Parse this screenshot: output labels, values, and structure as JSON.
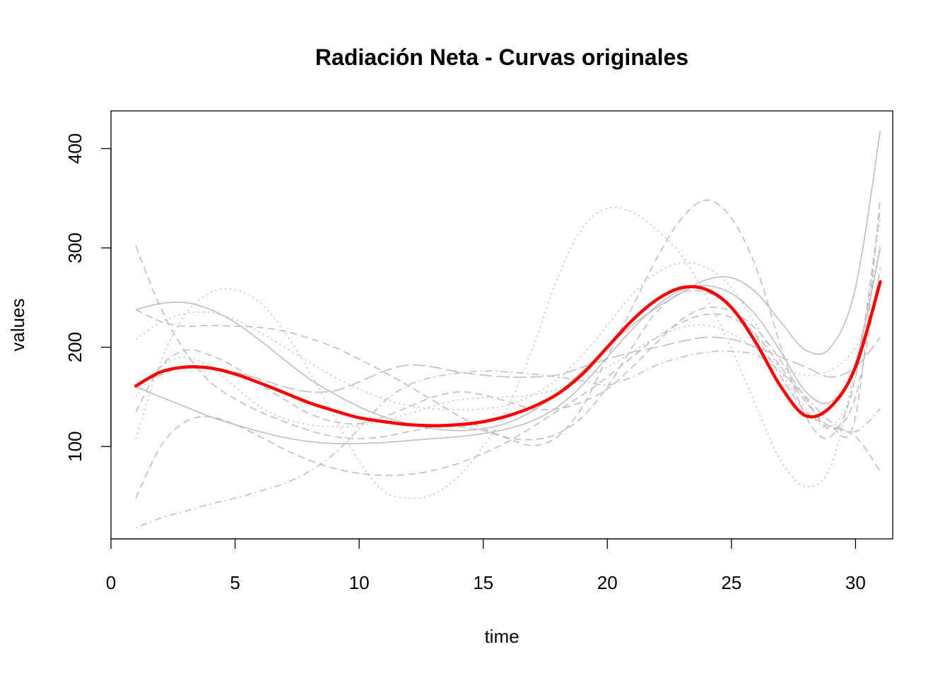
{
  "chart_data": {
    "type": "line",
    "title": "Radiación Neta - Curvas originales",
    "xlabel": "time",
    "ylabel": "values",
    "xlim": [
      0,
      31.5
    ],
    "ylim": [
      7,
      438
    ],
    "xticks": [
      0,
      5,
      10,
      15,
      20,
      25,
      30
    ],
    "yticks": [
      100,
      200,
      300,
      400
    ],
    "grid": false,
    "legend": "none",
    "colors": {
      "curves": "#bebebe",
      "mean": "#ff0000",
      "axis": "#000000"
    },
    "x": [
      1,
      2,
      3,
      4,
      5,
      6,
      7,
      8,
      9,
      10,
      11,
      12,
      13,
      14,
      15,
      16,
      17,
      18,
      19,
      20,
      21,
      22,
      23,
      24,
      25,
      26,
      27,
      28,
      29,
      30,
      31
    ],
    "series": [
      {
        "style": "solid",
        "values": [
          238,
          244,
          245,
          238,
          225,
          207,
          187,
          168,
          153,
          140,
          130,
          123,
          118,
          116,
          118,
          124,
          136,
          154,
          176,
          200,
          222,
          240,
          255,
          268,
          270,
          255,
          225,
          197,
          200,
          260,
          418
        ]
      },
      {
        "style": "solid",
        "values": [
          160,
          150,
          140,
          130,
          122,
          115,
          109,
          105,
          103,
          103,
          104,
          106,
          108,
          110,
          113,
          118,
          126,
          140,
          162,
          190,
          218,
          242,
          258,
          262,
          254,
          232,
          195,
          155,
          145,
          185,
          300
        ]
      },
      {
        "style": "dashed",
        "values": [
          302,
          240,
          195,
          165,
          148,
          135,
          125,
          116,
          110,
          108,
          110,
          115,
          119,
          120,
          116,
          108,
          101,
          110,
          140,
          190,
          240,
          290,
          330,
          348,
          330,
          280,
          200,
          130,
          110,
          170,
          340
        ]
      },
      {
        "style": "dashed",
        "values": [
          48,
          100,
          125,
          130,
          122,
          110,
          97,
          86,
          78,
          73,
          71,
          72,
          76,
          83,
          93,
          105,
          120,
          136,
          152,
          170,
          190,
          210,
          225,
          233,
          230,
          212,
          180,
          145,
          120,
          130,
          350
        ]
      },
      {
        "style": "dashed",
        "values": [
          135,
          180,
          197,
          192,
          180,
          163,
          147,
          133,
          125,
          123,
          130,
          140,
          150,
          155,
          152,
          145,
          138,
          138,
          145,
          158,
          180,
          205,
          228,
          240,
          236,
          218,
          186,
          148,
          118,
          150,
          280
        ]
      },
      {
        "style": "dashed",
        "values": [
          238,
          226,
          221,
          222,
          221,
          220,
          216,
          209,
          200,
          188,
          175,
          161,
          146,
          131,
          118,
          109,
          107,
          113,
          130,
          160,
          200,
          236,
          255,
          255,
          240,
          210,
          170,
          135,
          120,
          110,
          75
        ]
      },
      {
        "style": "dotted",
        "values": [
          108,
          185,
          233,
          255,
          258,
          245,
          215,
          175,
          130,
          85,
          55,
          48,
          52,
          70,
          100,
          140,
          200,
          270,
          320,
          340,
          336,
          318,
          292,
          250,
          198,
          140,
          85,
          60,
          80,
          180,
          305
        ]
      },
      {
        "style": "dotted",
        "values": [
          208,
          225,
          234,
          235,
          228,
          215,
          200,
          185,
          170,
          158,
          148,
          141,
          138,
          137,
          138,
          142,
          152,
          168,
          192,
          222,
          253,
          275,
          285,
          280,
          260,
          222,
          175,
          138,
          120,
          170,
          330
        ]
      },
      {
        "style": "dotted",
        "values": [
          150,
          180,
          190,
          180,
          160,
          140,
          128,
          122,
          120,
          121,
          126,
          133,
          141,
          147,
          149,
          150,
          152,
          158,
          168,
          180,
          195,
          210,
          220,
          222,
          214,
          198,
          180,
          172,
          177,
          200,
          258
        ]
      },
      {
        "style": "dotdash",
        "values": [
          18,
          28,
          35,
          42,
          48,
          55,
          63,
          75,
          93,
          118,
          145,
          162,
          170,
          174,
          176,
          175,
          173,
          170,
          166,
          162,
          170,
          182,
          190,
          195,
          196,
          192,
          175,
          150,
          125,
          115,
          138
        ]
      },
      {
        "style": "longdash",
        "values": [
          162,
          172,
          181,
          180,
          175,
          168,
          160,
          155,
          156,
          165,
          176,
          182,
          180,
          175,
          172,
          170,
          170,
          172,
          180,
          188,
          195,
          200,
          206,
          210,
          208,
          200,
          190,
          180,
          170,
          180,
          210
        ]
      }
    ],
    "mean_curve": {
      "name": "mean",
      "values": [
        161,
        175,
        180,
        179,
        173,
        164,
        154,
        144,
        136,
        129,
        125,
        122,
        121,
        122,
        125,
        131,
        140,
        153,
        173,
        200,
        227,
        248,
        260,
        258,
        240,
        204,
        160,
        131,
        140,
        180,
        266
      ]
    }
  }
}
